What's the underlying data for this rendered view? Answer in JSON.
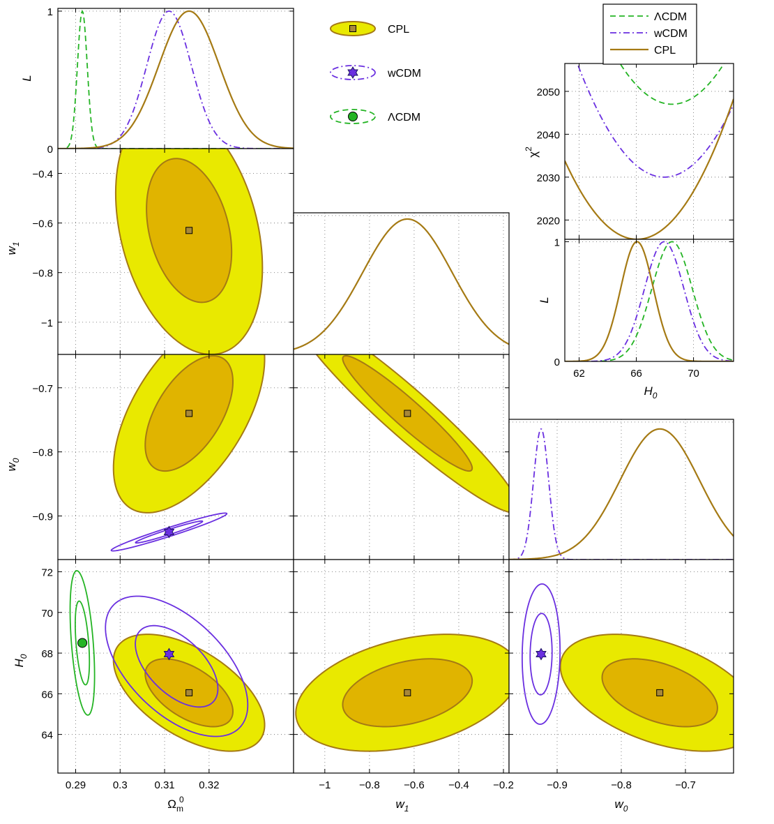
{
  "chart_data": {
    "type": "triangle-contour",
    "title": "",
    "colors": {
      "cpl_line": "#a57a14",
      "cpl_fill_outer": "#e9e900",
      "cpl_fill_inner": "#e0b400",
      "wcdm": "#6a2fe0",
      "lcdm": "#24b424"
    },
    "series": [
      {
        "name": "CPL",
        "style": "solid, filled contours",
        "best_fit": {
          "Om0": 0.3155,
          "w0": -0.74,
          "w1": -0.63,
          "H0": 66.05
        }
      },
      {
        "name": "wCDM",
        "style": "dash-dot",
        "best_fit": {
          "Om0": 0.311,
          "w0": -0.925,
          "H0": 67.95
        }
      },
      {
        "name": "ΛCDM",
        "style": "dashed",
        "best_fit": {
          "Om0": 0.2915,
          "H0": 68.5
        }
      }
    ],
    "panels": [
      {
        "name": "L_vs_Om0",
        "xlim": [
          0.286,
          0.339
        ],
        "ylim": [
          0,
          1.02
        ],
        "ylabel": "L",
        "yticks": [
          "0",
          "1"
        ]
      },
      {
        "name": "w1_vs_Om0",
        "xlim": [
          0.286,
          0.339
        ],
        "ylim": [
          -1.13,
          -0.3
        ],
        "ylabel": "w_1",
        "yticks": [
          "-0.4",
          "-0.6",
          "-0.8",
          "-1"
        ]
      },
      {
        "name": "w0_vs_Om0",
        "xlim": [
          0.286,
          0.339
        ],
        "ylim": [
          -0.968,
          -0.648
        ],
        "ylabel": "w_0",
        "yticks": [
          "-0.7",
          "-0.8",
          "-0.9"
        ]
      },
      {
        "name": "H0_vs_Om0",
        "xlim": [
          0.286,
          0.339
        ],
        "ylim": [
          62.1,
          72.6
        ],
        "ylabel": "H_0",
        "xlabel": "Ω_m^0",
        "yticks": [
          "72",
          "70",
          "68",
          "66",
          "64"
        ],
        "xticks": [
          "0.29",
          "0.3",
          "0.31",
          "0.32"
        ]
      },
      {
        "name": "L_vs_w1",
        "xlim": [
          -1.14,
          -0.175
        ],
        "ylim": [
          0,
          1.02
        ]
      },
      {
        "name": "w0_vs_w1",
        "xlim": [
          -1.14,
          -0.175
        ],
        "ylim": [
          -0.968,
          -0.648
        ]
      },
      {
        "name": "H0_vs_w1",
        "xlim": [
          -1.14,
          -0.175
        ],
        "ylim": [
          62.1,
          72.6
        ],
        "xlabel": "w_1",
        "xticks": [
          "-1",
          "-0.8",
          "-0.6",
          "-0.4",
          "-0.2"
        ]
      },
      {
        "name": "L_vs_w0",
        "xlim": [
          -0.975,
          -0.625
        ],
        "ylim": [
          0,
          1.02
        ]
      },
      {
        "name": "H0_vs_w0",
        "xlim": [
          -0.975,
          -0.625
        ],
        "ylim": [
          62.1,
          72.6
        ],
        "xlabel": "w_0",
        "xticks": [
          "-0.9",
          "-0.8",
          "-0.7"
        ]
      },
      {
        "name": "chi2_vs_H0",
        "xlim": [
          61,
          72.8
        ],
        "ylim": [
          2015.5,
          2056.5
        ],
        "ylabel": "χ^2",
        "yticks": [
          "2050",
          "2040",
          "2030",
          "2020"
        ],
        "curves": [
          {
            "name": "ΛCDM",
            "min_H0": 68.5,
            "min_chi2": 2047
          },
          {
            "name": "wCDM",
            "min_H0": 67.95,
            "min_chi2": 2030
          },
          {
            "name": "CPL",
            "min_H0": 66.05,
            "min_chi2": 2015.5
          }
        ]
      },
      {
        "name": "L_vs_H0",
        "xlim": [
          61,
          72.8
        ],
        "ylim": [
          0,
          1.02
        ],
        "ylabel": "L",
        "xlabel": "H_0",
        "yticks": [
          "0",
          "1"
        ],
        "xticks": [
          "62",
          "66",
          "70"
        ]
      }
    ],
    "legend_top_right": [
      "ΛCDM",
      "wCDM",
      "CPL"
    ],
    "legend_upper_center": [
      "CPL",
      "wCDM",
      "ΛCDM"
    ]
  }
}
